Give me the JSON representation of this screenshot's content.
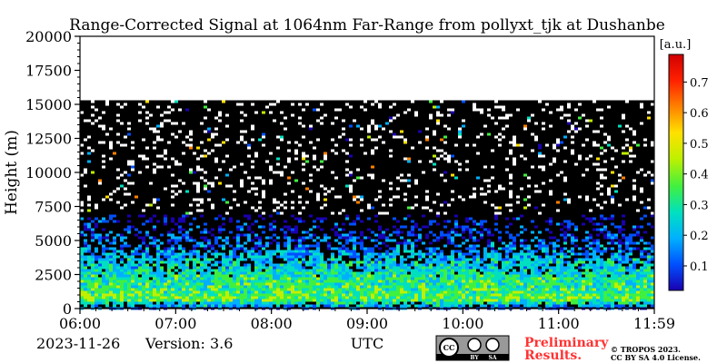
{
  "chart_data": {
    "type": "heatmap",
    "title": "Range-Corrected Signal at 1064nm Far-Range from pollyxt_tjk at Dushanbe",
    "ylabel": "Height (m)",
    "xlabel": "UTC",
    "x_range": [
      "06:00",
      "11:59"
    ],
    "ylim": [
      0,
      20000
    ],
    "x_ticks": [
      "06:00",
      "07:00",
      "08:00",
      "09:00",
      "10:00",
      "11:00",
      "11:59"
    ],
    "y_ticks": [
      0,
      2500,
      5000,
      7500,
      10000,
      12500,
      15000,
      17500,
      20000
    ],
    "data_top_height": 15300,
    "colorbar": {
      "unit": "[a.u.]",
      "range": [
        0.02,
        0.79
      ],
      "ticks": [
        0.1,
        0.2,
        0.3,
        0.4,
        0.5,
        0.6,
        0.7
      ],
      "colormap": [
        "#1a00b0",
        "#0050ff",
        "#00b0ff",
        "#00e0c0",
        "#40f040",
        "#c0f000",
        "#ffe000",
        "#ff8000",
        "#ff2000",
        "#d00000"
      ]
    },
    "profile": [
      {
        "height": 0,
        "value": 0.1
      },
      {
        "height": 300,
        "value": 0.22
      },
      {
        "height": 800,
        "value": 0.38
      },
      {
        "height": 1500,
        "value": 0.34
      },
      {
        "height": 2500,
        "value": 0.3
      },
      {
        "height": 3500,
        "value": 0.25
      },
      {
        "height": 5000,
        "value": 0.15
      },
      {
        "height": 7500,
        "value": 0.04
      },
      {
        "height": 10000,
        "value": 0.02
      },
      {
        "height": 15300,
        "value": 0.02
      }
    ]
  },
  "footer": {
    "date": "2023-11-26",
    "version": "Version: 3.6",
    "time_label": "UTC",
    "preliminary_line1": "Preliminary",
    "preliminary_line2": "Results.",
    "copyright_line1": "© TROPOS 2023.",
    "copyright_line2": "CC BY SA 4.0 License."
  },
  "license_badge": {
    "cc": "CC",
    "by": "BY",
    "sa": "SA"
  }
}
